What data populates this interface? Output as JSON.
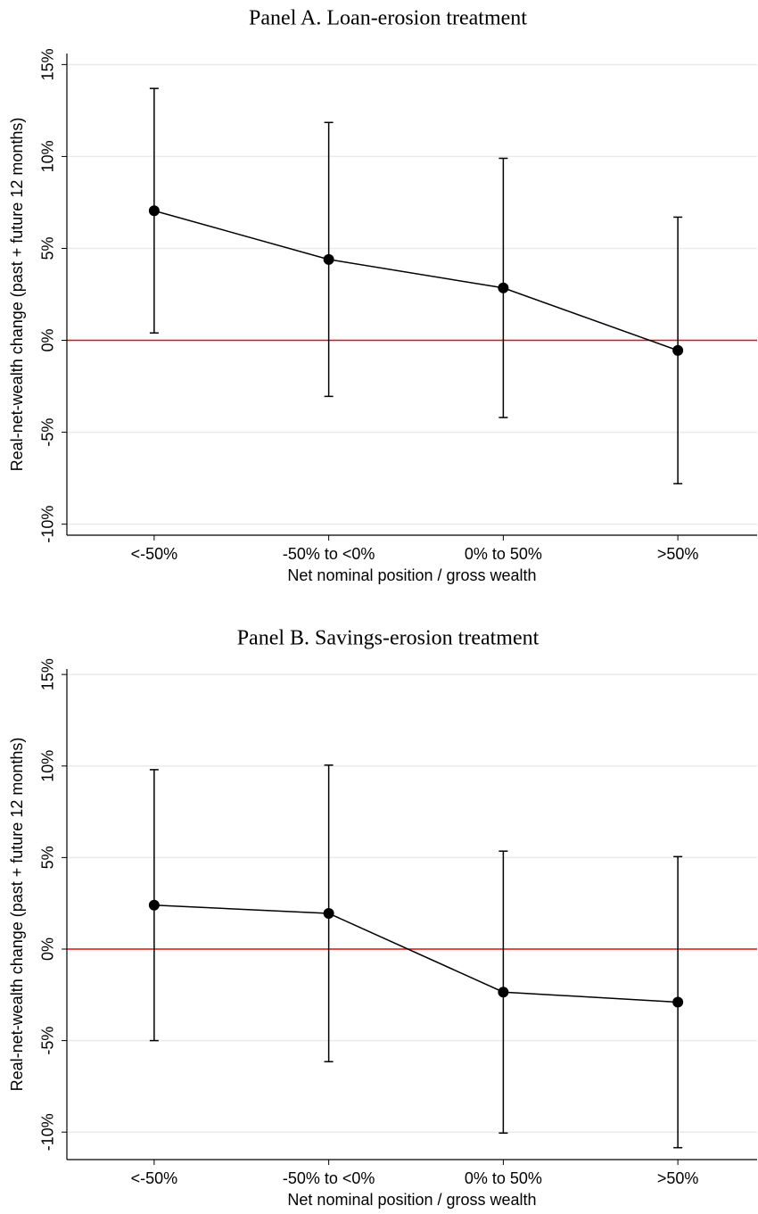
{
  "chart_data": [
    {
      "type": "line",
      "title": "Panel A. Loan-erosion treatment",
      "x_label": "Net nominal position / gross wealth",
      "y_label": "Real-net-wealth change (past + future 12 months)",
      "categories": [
        "<-50%",
        "-50% to <0%",
        "0% to 50%",
        ">50%"
      ],
      "series": [
        {
          "color": "#000000",
          "values": [
            7.05,
            4.4,
            2.85,
            -0.55
          ],
          "errors": [
            6.65,
            7.45,
            7.05,
            7.25
          ]
        }
      ],
      "ylim": [
        -10.6,
        15.6
      ],
      "yticks": [
        {
          "value": -10,
          "label": "-10%"
        },
        {
          "value": -5,
          "label": "-5%"
        },
        {
          "value": 0,
          "label": "0%"
        },
        {
          "value": 5,
          "label": "5%"
        },
        {
          "value": 10,
          "label": "10%"
        },
        {
          "value": 15,
          "label": "15%"
        }
      ],
      "reference_line": {
        "value": 0,
        "color": "#e3120b"
      },
      "grid": true
    },
    {
      "type": "line",
      "title": "Panel B. Savings-erosion treatment",
      "x_label": "Net nominal position / gross wealth",
      "y_label": "Real-net-wealth change (past + future 12 months)",
      "categories": [
        "<-50%",
        "-50% to <0%",
        "0% to 50%",
        ">50%"
      ],
      "series": [
        {
          "color": "#000000",
          "values": [
            2.4,
            1.95,
            -2.35,
            -2.9
          ],
          "errors": [
            7.4,
            8.1,
            7.7,
            7.95
          ]
        }
      ],
      "ylim": [
        -11.5,
        15.3
      ],
      "yticks": [
        {
          "value": -10,
          "label": "-10%"
        },
        {
          "value": -5,
          "label": "-5%"
        },
        {
          "value": 0,
          "label": "0%"
        },
        {
          "value": 5,
          "label": "5%"
        },
        {
          "value": 10,
          "label": "10%"
        },
        {
          "value": 15,
          "label": "15%"
        }
      ],
      "reference_line": {
        "value": 0,
        "color": "#e3120b"
      },
      "grid": true
    }
  ]
}
